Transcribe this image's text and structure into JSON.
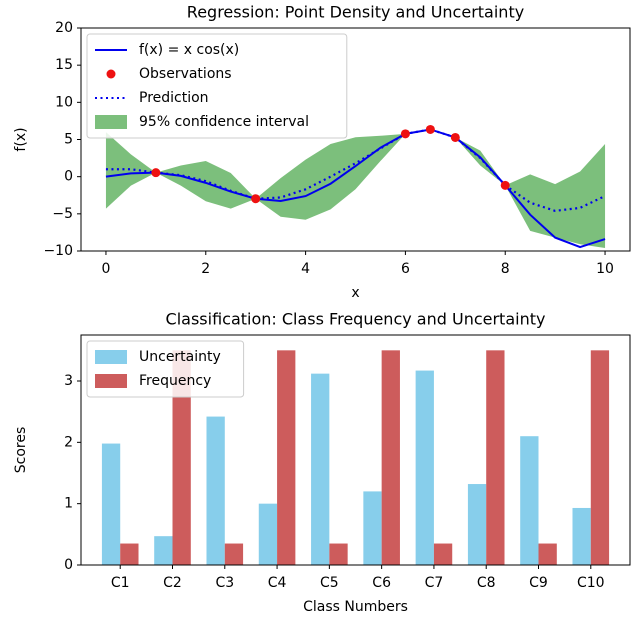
{
  "chart_data": [
    {
      "type": "line",
      "title": "Regression: Point Density and Uncertainty",
      "xlabel": "x",
      "ylabel": "f(x)",
      "x": [
        0,
        0.5,
        1,
        1.5,
        2,
        2.5,
        3,
        3.5,
        4,
        4.5,
        5,
        5.5,
        6,
        6.5,
        7,
        7.5,
        8,
        8.5,
        9,
        9.5,
        10
      ],
      "xlim": [
        -0.5,
        10.5
      ],
      "ylim": [
        -10,
        20
      ],
      "xticks": [
        0,
        2,
        4,
        6,
        8,
        10
      ],
      "yticks": [
        {
          "value": -10,
          "label": "−10"
        },
        {
          "value": -5,
          "label": "−5"
        },
        0,
        5,
        10,
        15,
        20
      ],
      "legend": "upper left",
      "series": [
        {
          "name": "f(x) = x cos(x)",
          "kind": "line",
          "style": "solid",
          "color": "#0000ee",
          "values": [
            0,
            0.439,
            0.54,
            0.106,
            -0.832,
            -2.003,
            -2.97,
            -3.278,
            -2.615,
            -0.949,
            1.418,
            3.898,
            5.761,
            6.349,
            5.277,
            2.6,
            -1.164,
            -5.117,
            -8.2,
            -9.473,
            -8.391
          ]
        },
        {
          "name": "Observations",
          "kind": "scatter",
          "color": "#ee1111",
          "x": [
            1,
            3,
            6,
            6.5,
            7,
            8
          ],
          "values": [
            0.54,
            -2.97,
            5.761,
            6.349,
            5.277,
            -1.164
          ]
        },
        {
          "name": "Prediction",
          "kind": "line",
          "style": "dotted",
          "color": "#0000ee",
          "values": [
            1.0,
            1.0,
            0.54,
            0.2,
            -0.6,
            -1.9,
            -2.97,
            -2.8,
            -1.7,
            0.0,
            1.8,
            3.8,
            5.761,
            6.349,
            5.277,
            2.5,
            -1.164,
            -3.5,
            -4.6,
            -4.2,
            -2.6
          ]
        },
        {
          "name": "95% confidence interval",
          "kind": "band",
          "color": "#7cbf7c",
          "upper": [
            6.0,
            3.0,
            0.54,
            1.5,
            2.1,
            0.5,
            -2.97,
            -0.2,
            2.3,
            4.4,
            5.3,
            5.5,
            5.761,
            6.349,
            5.277,
            3.5,
            -1.164,
            0.3,
            -1.0,
            0.7,
            4.4
          ],
          "lower": [
            -4.3,
            -1.2,
            0.54,
            -1.2,
            -3.3,
            -4.3,
            -2.97,
            -5.4,
            -5.8,
            -4.4,
            -1.7,
            2.1,
            5.761,
            6.349,
            5.277,
            1.5,
            -1.164,
            -7.3,
            -8.2,
            -9.1,
            -9.6
          ]
        }
      ]
    },
    {
      "type": "bar",
      "title": "Classification: Class Frequency and Uncertainty",
      "xlabel": "Class Numbers",
      "ylabel": "Scores",
      "categories": [
        "C1",
        "C2",
        "C3",
        "C4",
        "C5",
        "C6",
        "C7",
        "C8",
        "C9",
        "C10"
      ],
      "ylim": [
        0,
        3.75
      ],
      "yticks": [
        0,
        1,
        2,
        3
      ],
      "legend": "upper left",
      "series": [
        {
          "name": "Uncertainty",
          "color": "#87ceeb",
          "values": [
            1.98,
            0.47,
            2.42,
            1.0,
            3.12,
            1.2,
            3.17,
            1.32,
            2.1,
            0.93
          ]
        },
        {
          "name": "Frequency",
          "color": "#cd5c5c",
          "values": [
            0.35,
            3.5,
            0.35,
            3.5,
            0.35,
            3.5,
            0.35,
            3.5,
            0.35,
            3.5
          ]
        }
      ]
    }
  ]
}
